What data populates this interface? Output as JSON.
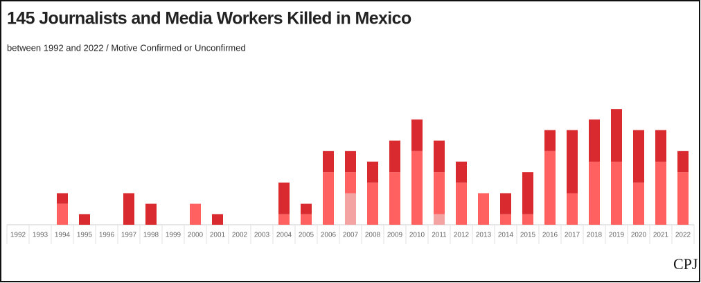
{
  "chart_data": {
    "type": "stacked-bar",
    "title": "145 Journalists and Media Workers Killed in Mexico",
    "subtitle": "between 1992 and 2022 / Motive Confirmed or Unconfirmed",
    "logo": "CPJ",
    "categories": [
      "1992",
      "1993",
      "1994",
      "1995",
      "1996",
      "1997",
      "1998",
      "1999",
      "2000",
      "2001",
      "2002",
      "2003",
      "2004",
      "2005",
      "2006",
      "2007",
      "2008",
      "2009",
      "2010",
      "2011",
      "2012",
      "2013",
      "2014",
      "2015",
      "2016",
      "2017",
      "2018",
      "2019",
      "2020",
      "2021",
      "2022"
    ],
    "series": [
      {
        "color": "#f4a3a3",
        "values": [
          0,
          0,
          0,
          0,
          0,
          0,
          0,
          0,
          0,
          0,
          0,
          0,
          0,
          0,
          0,
          3,
          0,
          0,
          0,
          1,
          0,
          0,
          0,
          0,
          0,
          0,
          0,
          0,
          0,
          0,
          0
        ]
      },
      {
        "color": "#ff6161",
        "values": [
          0,
          0,
          2,
          0,
          0,
          0,
          0,
          0,
          2,
          0,
          0,
          0,
          1,
          1,
          5,
          2,
          4,
          5,
          7,
          4,
          4,
          3,
          1,
          1,
          7,
          3,
          6,
          6,
          4,
          6,
          5
        ]
      },
      {
        "color": "#d92b2f",
        "values": [
          0,
          0,
          1,
          1,
          0,
          3,
          2,
          0,
          0,
          1,
          0,
          0,
          3,
          1,
          2,
          2,
          2,
          3,
          3,
          3,
          2,
          0,
          2,
          4,
          2,
          6,
          4,
          5,
          5,
          3,
          2
        ]
      }
    ],
    "ylim": [
      0,
      12
    ]
  }
}
